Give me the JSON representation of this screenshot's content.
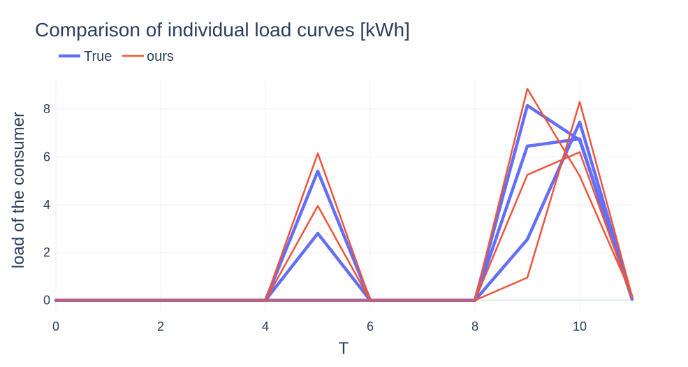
{
  "chart_data": {
    "type": "line",
    "title": "Comparison of individual load curves [kWh]",
    "xlabel": "T",
    "ylabel": "load of the consumer",
    "xlim": [
      0,
      11
    ],
    "ylim": [
      -0.45,
      9.2
    ],
    "xticks": [
      0,
      2,
      4,
      6,
      8,
      10
    ],
    "yticks": [
      0,
      2,
      4,
      6,
      8
    ],
    "grid": true,
    "legend_position": "top-left, horizontal",
    "legend": [
      {
        "name": "True",
        "color": "#636efa"
      },
      {
        "name": "ours",
        "color": "#ef553b"
      }
    ],
    "x": [
      0,
      1,
      2,
      3,
      4,
      5,
      6,
      7,
      8,
      9,
      10,
      11
    ],
    "series": [
      {
        "group": "True",
        "color": "#636efa",
        "width": 4.5,
        "values": [
          0,
          0,
          0,
          0,
          0,
          5.4,
          0,
          0,
          0,
          8.15,
          6.7,
          0.05
        ]
      },
      {
        "group": "True",
        "color": "#636efa",
        "width": 4.5,
        "values": [
          0,
          0,
          0,
          0,
          0,
          2.8,
          0,
          0,
          0,
          6.45,
          6.75,
          0.05
        ]
      },
      {
        "group": "True",
        "color": "#636efa",
        "width": 4.5,
        "values": [
          0,
          0,
          0,
          0,
          0,
          0,
          0,
          0,
          0,
          2.55,
          7.45,
          0.05
        ]
      },
      {
        "group": "ours",
        "color": "#ef553b",
        "width": 2.5,
        "values": [
          0,
          0,
          0,
          0,
          0,
          6.15,
          0,
          0,
          0,
          8.85,
          5.2,
          0.2
        ]
      },
      {
        "group": "ours",
        "color": "#ef553b",
        "width": 2.5,
        "values": [
          0,
          0,
          0,
          0,
          0,
          3.95,
          0,
          0,
          0,
          5.25,
          6.2,
          0.1
        ]
      },
      {
        "group": "ours",
        "color": "#ef553b",
        "width": 2.5,
        "values": [
          0,
          0,
          0,
          0,
          0,
          0,
          0,
          0,
          0,
          0.95,
          8.3,
          0.15
        ]
      }
    ]
  }
}
